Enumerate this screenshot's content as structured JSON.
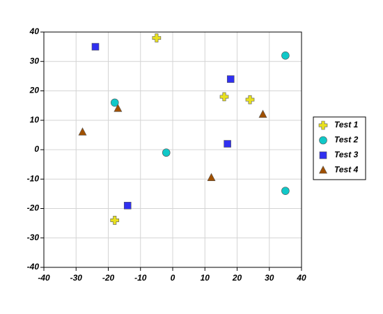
{
  "chart_data": {
    "type": "scatter",
    "xlim": [
      -40,
      40
    ],
    "xticks": [
      -40,
      -30,
      -20,
      -10,
      0,
      10,
      20,
      30,
      40
    ],
    "ylim": [
      -40,
      40
    ],
    "yticks": [
      -40,
      -30,
      -20,
      -10,
      0,
      10,
      20,
      30,
      40
    ],
    "grid": true,
    "legend": "right",
    "series": [
      {
        "name": "Test 1",
        "color": "#e8e020",
        "marker": "plus",
        "x": [
          -5,
          16,
          24,
          -18
        ],
        "values": [
          38,
          18,
          17,
          -24
        ]
      },
      {
        "name": "Test 2",
        "color": "#10c8c8",
        "marker": "circle",
        "x": [
          35,
          -18,
          -2,
          35
        ],
        "values": [
          32,
          16,
          -1,
          -14
        ]
      },
      {
        "name": "Test 3",
        "color": "#3030f0",
        "marker": "square",
        "x": [
          -24,
          18,
          17,
          -14
        ],
        "values": [
          35,
          24,
          2,
          -19
        ]
      },
      {
        "name": "Test 4",
        "color": "#a05000",
        "marker": "triangle",
        "x": [
          -17,
          -28,
          12,
          28
        ],
        "values": [
          14,
          6,
          -9.5,
          12
        ]
      }
    ]
  }
}
